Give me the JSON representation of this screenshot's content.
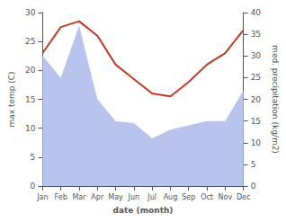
{
  "chart_data": {
    "type": "line",
    "categories": [
      "Jan",
      "Feb",
      "Mar",
      "Apr",
      "May",
      "Jun",
      "Jul",
      "Aug",
      "Sep",
      "Oct",
      "Nov",
      "Dec"
    ],
    "xlabel": "date (month)",
    "ylabel": "max temp (C)",
    "y2label": "med. precipitation (kg/m2)",
    "ylim": [
      0,
      30
    ],
    "yticks": [
      0,
      5,
      10,
      15,
      20,
      25,
      30
    ],
    "y2lim": [
      0,
      40
    ],
    "y2ticks": [
      0,
      5,
      10,
      15,
      20,
      25,
      30,
      35,
      40
    ],
    "grid": false,
    "series": [
      {
        "type": "area",
        "axis": "y2",
        "color": "#b8c4ee",
        "values": [
          30,
          25,
          37,
          20,
          15,
          14.5,
          11,
          13,
          14,
          15,
          15,
          22
        ]
      },
      {
        "type": "line",
        "color": "#c0392b",
        "values": [
          23,
          27.5,
          28.5,
          26,
          21,
          18.5,
          16,
          15.5,
          18,
          21,
          23,
          27
        ]
      }
    ]
  }
}
